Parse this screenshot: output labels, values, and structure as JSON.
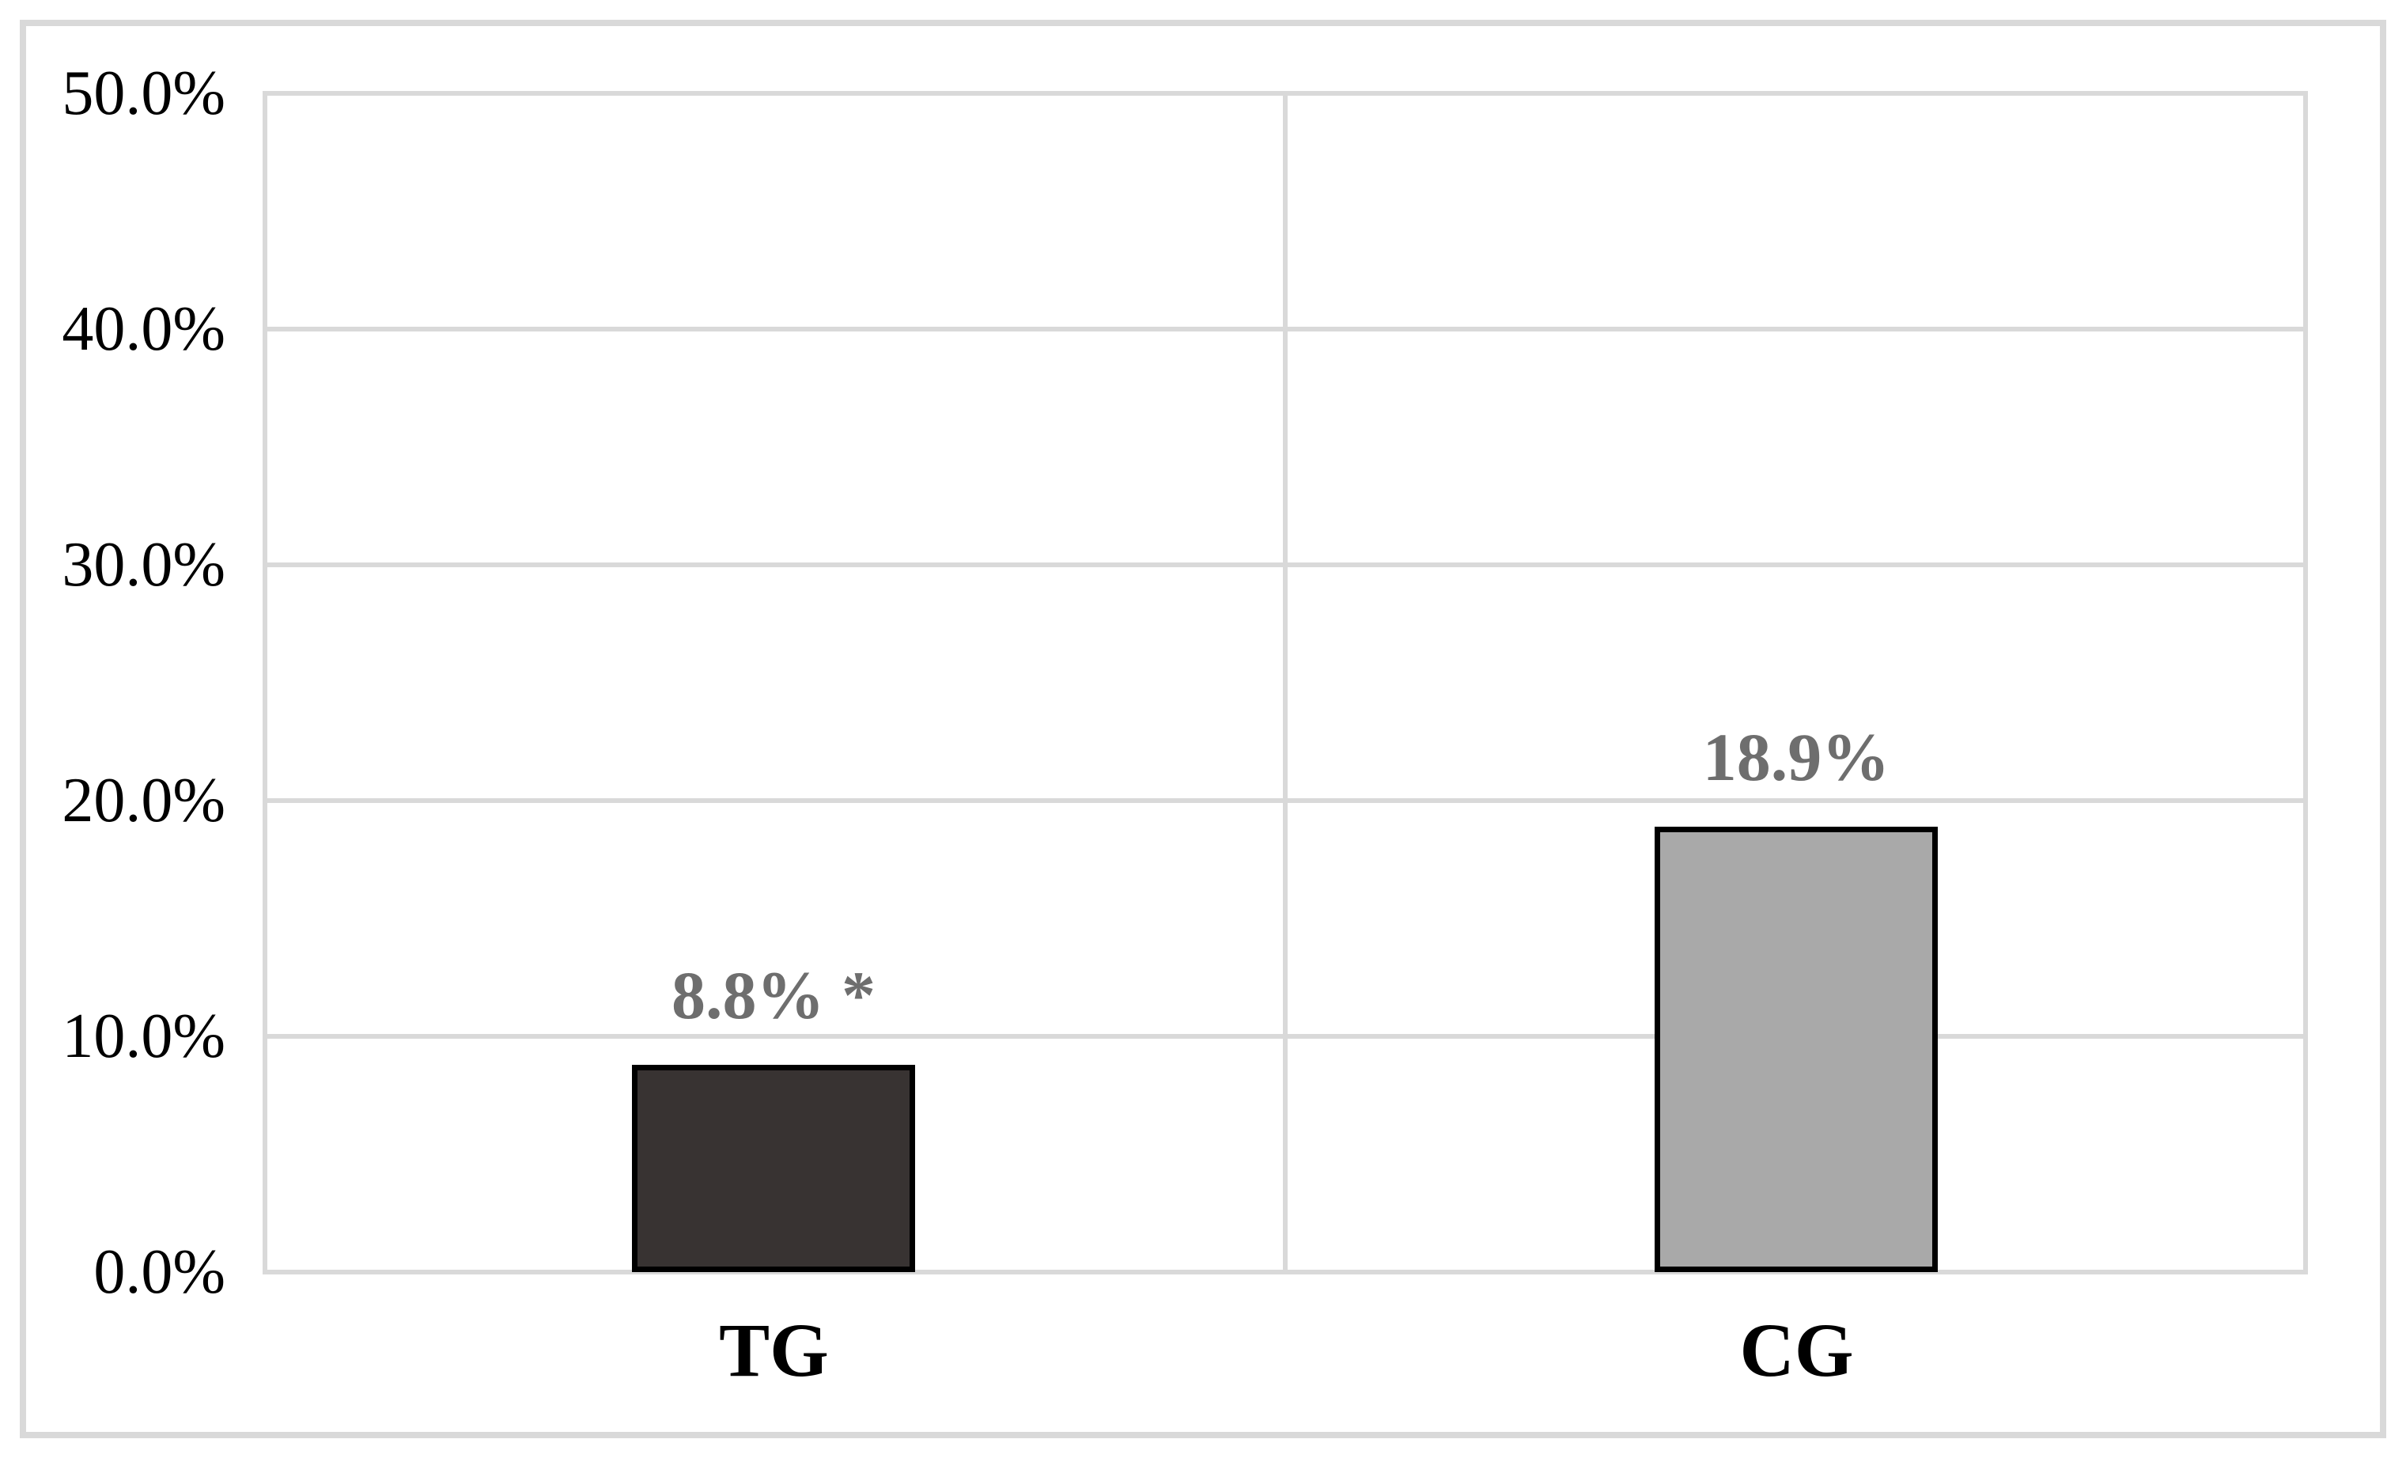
{
  "chart_data": {
    "type": "bar",
    "categories": [
      "TG",
      "CG"
    ],
    "values": [
      8.8,
      18.9
    ],
    "value_labels": [
      "8.8% *",
      "18.9%"
    ],
    "annotation_note": "* significance marker shown beside TG value",
    "bar_colors": [
      "#383332",
      "#A9A9A9"
    ],
    "bar_border_color": "#000000",
    "value_label_color": "#6E6E6E",
    "gridline_color": "#D9D9D9",
    "frame_color": "#D9D9D9",
    "background_color": "#FFFFFF",
    "title": "",
    "xlabel": "",
    "ylabel": "",
    "ylim": [
      0,
      50
    ],
    "ytick_step": 10,
    "yticks": [
      "50.0%",
      "40.0%",
      "30.0%",
      "20.0%",
      "10.0%",
      "0.0%"
    ],
    "grid": true,
    "legend": false
  }
}
